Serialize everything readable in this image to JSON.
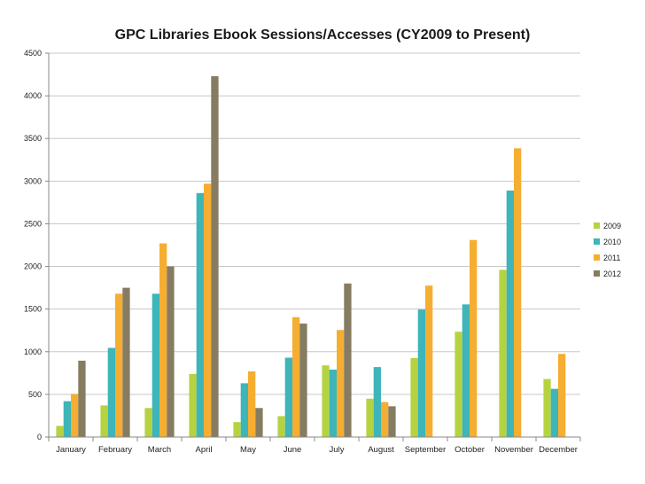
{
  "chart_data": {
    "type": "bar",
    "title": "GPC Libraries Ebook Sessions/Accesses (CY2009 to Present)",
    "xlabel": "",
    "ylabel": "",
    "ylim": [
      0,
      4500
    ],
    "yticks": [
      0,
      500,
      1000,
      1500,
      2000,
      2500,
      3000,
      3500,
      4000,
      4500
    ],
    "grid": true,
    "legend_position": "right",
    "categories": [
      "January",
      "February",
      "March",
      "April",
      "May",
      "June",
      "July",
      "August",
      "September",
      "October",
      "November",
      "December"
    ],
    "series": [
      {
        "name": "2009",
        "color": "#b5d341",
        "values": [
          130,
          370,
          340,
          740,
          175,
          245,
          840,
          450,
          925,
          1235,
          1960,
          680
        ]
      },
      {
        "name": "2010",
        "color": "#3db5b9",
        "values": [
          420,
          1045,
          1680,
          2860,
          630,
          930,
          790,
          820,
          1495,
          1555,
          2890,
          565
        ]
      },
      {
        "name": "2011",
        "color": "#f5ae31",
        "values": [
          505,
          1680,
          2270,
          2970,
          770,
          1405,
          1255,
          410,
          1775,
          2310,
          3385,
          975
        ]
      },
      {
        "name": "2012",
        "color": "#857c62",
        "values": [
          895,
          1750,
          2000,
          4230,
          340,
          1330,
          1800,
          360,
          null,
          null,
          null,
          null
        ]
      }
    ]
  }
}
